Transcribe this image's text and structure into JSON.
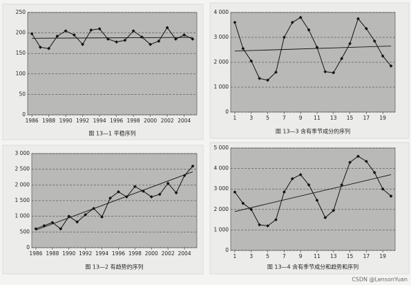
{
  "chart_data": [
    {
      "type": "line",
      "title": "图 13—1  平稳序列",
      "x": [
        1986,
        1987,
        1988,
        1989,
        1990,
        1991,
        1992,
        1993,
        1994,
        1995,
        1996,
        1997,
        1998,
        1999,
        2000,
        2001,
        2002,
        2003,
        2004,
        2005
      ],
      "series": [
        {
          "color": "#111",
          "values": [
            198,
            165,
            162,
            192,
            205,
            195,
            172,
            207,
            210,
            185,
            178,
            182,
            205,
            190,
            172,
            180,
            213,
            185,
            195,
            185
          ]
        }
      ],
      "trend": {
        "x": [
          1986,
          2005
        ],
        "values": [
          187,
          189
        ]
      },
      "xlim": [
        1985.5,
        2005.5
      ],
      "xticks": [
        1986,
        1988,
        1990,
        1992,
        1994,
        1996,
        1998,
        2000,
        2002,
        2004
      ],
      "ylim": [
        0,
        250
      ],
      "yticks": [
        0,
        50,
        100,
        150,
        200,
        250
      ],
      "grid": true
    },
    {
      "type": "line",
      "title": "图 13—3  含有季节成分的序列",
      "x": [
        1,
        2,
        3,
        4,
        5,
        6,
        7,
        8,
        9,
        10,
        11,
        12,
        13,
        14,
        15,
        16,
        17,
        18,
        19,
        20
      ],
      "series": [
        {
          "color": "#111",
          "values": [
            3600,
            2550,
            2050,
            1350,
            1280,
            1600,
            3000,
            3600,
            3800,
            3300,
            2600,
            1620,
            1580,
            2150,
            2750,
            3750,
            3350,
            2850,
            2250,
            1850
          ]
        }
      ],
      "trend": {
        "x": [
          1,
          20
        ],
        "values": [
          2450,
          2650
        ]
      },
      "xlim": [
        0.5,
        20.5
      ],
      "xticks": [
        1,
        3,
        5,
        7,
        9,
        11,
        13,
        15,
        17,
        19
      ],
      "ylim": [
        0,
        4000
      ],
      "yticks": [
        0,
        {
          "value": 1000,
          "label": "1 000"
        },
        {
          "value": 2000,
          "label": "2 000"
        },
        {
          "value": 3000,
          "label": "3 000"
        },
        {
          "value": 4000,
          "label": "4 000"
        }
      ],
      "grid": true
    },
    {
      "type": "line",
      "title": "图 13—2  有趋势的序列",
      "x": [
        1986,
        1987,
        1988,
        1989,
        1990,
        1991,
        1992,
        1993,
        1994,
        1995,
        1996,
        1997,
        1998,
        1999,
        2000,
        2001,
        2002,
        2003,
        2004,
        2005
      ],
      "series": [
        {
          "color": "#111",
          "values": [
            600,
            700,
            800,
            600,
            1000,
            820,
            1050,
            1250,
            980,
            1580,
            1780,
            1620,
            1950,
            1800,
            1620,
            1700,
            2050,
            1750,
            2300,
            2600
          ]
        }
      ],
      "trend": {
        "x": [
          1986,
          2005
        ],
        "values": [
          560,
          2420
        ]
      },
      "xlim": [
        1985.5,
        2005.5
      ],
      "xticks": [
        1986,
        1988,
        1990,
        1992,
        1994,
        1996,
        1998,
        2000,
        2002,
        2004
      ],
      "ylim": [
        0,
        3000
      ],
      "yticks": [
        0,
        500,
        {
          "value": 1000,
          "label": "1 000"
        },
        {
          "value": 1500,
          "label": "1 500"
        },
        {
          "value": 2000,
          "label": "2 000"
        },
        {
          "value": 2500,
          "label": "2 500"
        },
        {
          "value": 3000,
          "label": "3 000"
        }
      ],
      "grid": true
    },
    {
      "type": "line",
      "title": "图 13—4  含有季节成分和趋势和序列",
      "x": [
        1,
        2,
        3,
        4,
        5,
        6,
        7,
        8,
        9,
        10,
        11,
        12,
        13,
        14,
        15,
        16,
        17,
        18,
        19,
        20
      ],
      "series": [
        {
          "color": "#111",
          "values": [
            2850,
            2300,
            2000,
            1250,
            1200,
            1500,
            2850,
            3500,
            3700,
            3200,
            2450,
            1600,
            1950,
            3200,
            4300,
            4600,
            4350,
            3800,
            3000,
            2650
          ]
        }
      ],
      "trend": {
        "x": [
          1,
          20
        ],
        "values": [
          1900,
          3700
        ]
      },
      "xlim": [
        0.5,
        20.5
      ],
      "xticks": [
        1,
        3,
        5,
        7,
        9,
        11,
        13,
        15,
        17,
        19
      ],
      "ylim": [
        0,
        5000
      ],
      "yticks": [
        0,
        {
          "value": 1000,
          "label": "1 000"
        },
        {
          "value": 2000,
          "label": "2 000"
        },
        {
          "value": 3000,
          "label": "3 000"
        },
        {
          "value": 4000,
          "label": "4 000"
        },
        {
          "value": 5000,
          "label": "5 000"
        }
      ],
      "grid": true
    }
  ],
  "watermark": "CSDN @LensonYuan"
}
